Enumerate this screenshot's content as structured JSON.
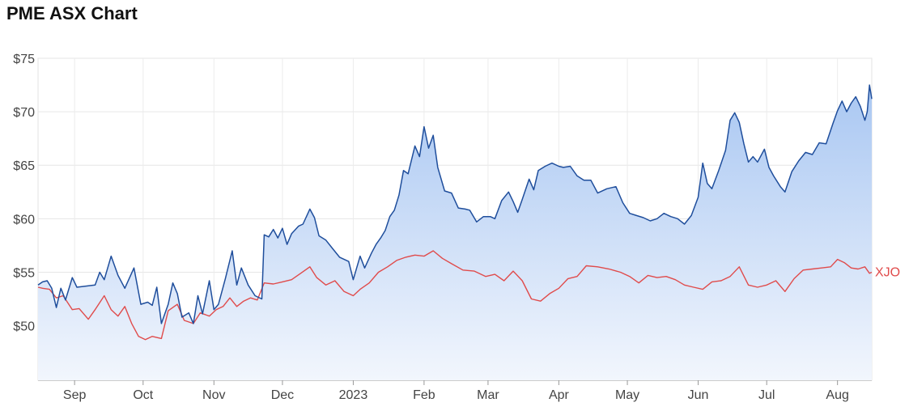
{
  "page_title": "PME ASX Chart",
  "chart_data": {
    "type": "area",
    "title": "PME ASX Chart",
    "xlabel": "",
    "ylabel": "",
    "ylim": [
      44.9,
      75
    ],
    "grid": true,
    "y_ticks": [
      {
        "value": 50,
        "label": "$50"
      },
      {
        "value": 55,
        "label": "$55"
      },
      {
        "value": 60,
        "label": "$60"
      },
      {
        "value": 65,
        "label": "$65"
      },
      {
        "value": 70,
        "label": "$70"
      },
      {
        "value": 75,
        "label": "$75"
      }
    ],
    "x_ticks": [
      {
        "date": "2022-09-01",
        "label": "Sep"
      },
      {
        "date": "2022-10-01",
        "label": "Oct"
      },
      {
        "date": "2022-11-01",
        "label": "Nov"
      },
      {
        "date": "2022-12-01",
        "label": "Dec"
      },
      {
        "date": "2023-01-01",
        "label": "2023"
      },
      {
        "date": "2023-02-01",
        "label": "Feb"
      },
      {
        "date": "2023-03-01",
        "label": "Mar"
      },
      {
        "date": "2023-04-01",
        "label": "Apr"
      },
      {
        "date": "2023-05-01",
        "label": "May"
      },
      {
        "date": "2023-06-01",
        "label": "Jun"
      },
      {
        "date": "2023-07-01",
        "label": "Jul"
      },
      {
        "date": "2023-08-01",
        "label": "Aug"
      }
    ],
    "x_range": [
      "2022-08-16",
      "2023-08-16"
    ],
    "series": [
      {
        "name": "",
        "color": "#1f4e9c",
        "fill_top": "#a9c7f2",
        "fill_bottom": "#f2f6fd",
        "points": [
          [
            "2022-08-16",
            53.8
          ],
          [
            "2022-08-18",
            54.1
          ],
          [
            "2022-08-20",
            54.2
          ],
          [
            "2022-08-22",
            53.5
          ],
          [
            "2022-08-24",
            51.7
          ],
          [
            "2022-08-26",
            53.5
          ],
          [
            "2022-08-28",
            52.4
          ],
          [
            "2022-08-31",
            54.5
          ],
          [
            "2022-09-02",
            53.6
          ],
          [
            "2022-09-06",
            53.7
          ],
          [
            "2022-09-10",
            53.8
          ],
          [
            "2022-09-12",
            55.0
          ],
          [
            "2022-09-14",
            54.3
          ],
          [
            "2022-09-17",
            56.5
          ],
          [
            "2022-09-20",
            54.7
          ],
          [
            "2022-09-23",
            53.5
          ],
          [
            "2022-09-27",
            55.4
          ],
          [
            "2022-09-30",
            52.0
          ],
          [
            "2022-10-03",
            52.2
          ],
          [
            "2022-10-05",
            51.9
          ],
          [
            "2022-10-07",
            53.6
          ],
          [
            "2022-10-09",
            50.2
          ],
          [
            "2022-10-12",
            52.0
          ],
          [
            "2022-10-14",
            54.0
          ],
          [
            "2022-10-16",
            53.0
          ],
          [
            "2022-10-18",
            50.8
          ],
          [
            "2022-10-21",
            51.2
          ],
          [
            "2022-10-23",
            50.2
          ],
          [
            "2022-10-25",
            52.8
          ],
          [
            "2022-10-27",
            51.1
          ],
          [
            "2022-10-30",
            54.2
          ],
          [
            "2022-11-01",
            51.5
          ],
          [
            "2022-11-03",
            52.0
          ],
          [
            "2022-11-06",
            54.4
          ],
          [
            "2022-11-09",
            57.0
          ],
          [
            "2022-11-11",
            53.8
          ],
          [
            "2022-11-13",
            55.4
          ],
          [
            "2022-11-16",
            53.8
          ],
          [
            "2022-11-19",
            52.8
          ],
          [
            "2022-11-22",
            52.5
          ],
          [
            "2022-11-23",
            58.5
          ],
          [
            "2022-11-25",
            58.3
          ],
          [
            "2022-11-27",
            59.0
          ],
          [
            "2022-11-29",
            58.2
          ],
          [
            "2022-12-01",
            59.1
          ],
          [
            "2022-12-03",
            57.6
          ],
          [
            "2022-12-05",
            58.6
          ],
          [
            "2022-12-08",
            59.3
          ],
          [
            "2022-12-10",
            59.5
          ],
          [
            "2022-12-13",
            60.9
          ],
          [
            "2022-12-15",
            60.1
          ],
          [
            "2022-12-17",
            58.4
          ],
          [
            "2022-12-20",
            58.0
          ],
          [
            "2022-12-23",
            57.2
          ],
          [
            "2022-12-26",
            56.4
          ],
          [
            "2022-12-30",
            56.0
          ],
          [
            "2023-01-01",
            54.3
          ],
          [
            "2023-01-04",
            56.5
          ],
          [
            "2023-01-06",
            55.4
          ],
          [
            "2023-01-09",
            56.8
          ],
          [
            "2023-01-11",
            57.6
          ],
          [
            "2023-01-13",
            58.2
          ],
          [
            "2023-01-15",
            58.9
          ],
          [
            "2023-01-17",
            60.2
          ],
          [
            "2023-01-19",
            60.8
          ],
          [
            "2023-01-21",
            62.2
          ],
          [
            "2023-01-23",
            64.5
          ],
          [
            "2023-01-25",
            64.2
          ],
          [
            "2023-01-28",
            66.8
          ],
          [
            "2023-01-30",
            65.8
          ],
          [
            "2023-02-01",
            68.6
          ],
          [
            "2023-02-03",
            66.6
          ],
          [
            "2023-02-05",
            67.8
          ],
          [
            "2023-02-07",
            64.8
          ],
          [
            "2023-02-10",
            62.6
          ],
          [
            "2023-02-13",
            62.4
          ],
          [
            "2023-02-16",
            61.0
          ],
          [
            "2023-02-19",
            60.9
          ],
          [
            "2023-02-21",
            60.8
          ],
          [
            "2023-02-24",
            59.7
          ],
          [
            "2023-02-27",
            60.2
          ],
          [
            "2023-03-02",
            60.2
          ],
          [
            "2023-03-04",
            60.0
          ],
          [
            "2023-03-07",
            61.7
          ],
          [
            "2023-03-10",
            62.5
          ],
          [
            "2023-03-12",
            61.6
          ],
          [
            "2023-03-14",
            60.6
          ],
          [
            "2023-03-16",
            61.8
          ],
          [
            "2023-03-19",
            63.7
          ],
          [
            "2023-03-21",
            62.7
          ],
          [
            "2023-03-23",
            64.5
          ],
          [
            "2023-03-26",
            64.9
          ],
          [
            "2023-03-29",
            65.2
          ],
          [
            "2023-04-01",
            64.9
          ],
          [
            "2023-04-03",
            64.8
          ],
          [
            "2023-04-06",
            64.9
          ],
          [
            "2023-04-09",
            64.0
          ],
          [
            "2023-04-12",
            63.6
          ],
          [
            "2023-04-15",
            63.6
          ],
          [
            "2023-04-18",
            62.4
          ],
          [
            "2023-04-22",
            62.8
          ],
          [
            "2023-04-26",
            63.0
          ],
          [
            "2023-04-29",
            61.5
          ],
          [
            "2023-05-02",
            60.5
          ],
          [
            "2023-05-05",
            60.3
          ],
          [
            "2023-05-08",
            60.1
          ],
          [
            "2023-05-11",
            59.8
          ],
          [
            "2023-05-14",
            60.0
          ],
          [
            "2023-05-17",
            60.5
          ],
          [
            "2023-05-20",
            60.2
          ],
          [
            "2023-05-23",
            60.0
          ],
          [
            "2023-05-26",
            59.5
          ],
          [
            "2023-05-29",
            60.3
          ],
          [
            "2023-06-01",
            62.0
          ],
          [
            "2023-06-03",
            65.2
          ],
          [
            "2023-06-05",
            63.3
          ],
          [
            "2023-06-07",
            62.8
          ],
          [
            "2023-06-10",
            64.5
          ],
          [
            "2023-06-13",
            66.4
          ],
          [
            "2023-06-15",
            69.2
          ],
          [
            "2023-06-17",
            69.9
          ],
          [
            "2023-06-19",
            69.0
          ],
          [
            "2023-06-21",
            67.0
          ],
          [
            "2023-06-23",
            65.3
          ],
          [
            "2023-06-25",
            65.8
          ],
          [
            "2023-06-27",
            65.3
          ],
          [
            "2023-06-30",
            66.5
          ],
          [
            "2023-07-02",
            64.8
          ],
          [
            "2023-07-04",
            64.0
          ],
          [
            "2023-07-07",
            63.0
          ],
          [
            "2023-07-09",
            62.5
          ],
          [
            "2023-07-12",
            64.4
          ],
          [
            "2023-07-15",
            65.4
          ],
          [
            "2023-07-18",
            66.2
          ],
          [
            "2023-07-21",
            66.0
          ],
          [
            "2023-07-24",
            67.1
          ],
          [
            "2023-07-27",
            67.0
          ],
          [
            "2023-07-30",
            68.9
          ],
          [
            "2023-08-01",
            70.1
          ],
          [
            "2023-08-03",
            71.0
          ],
          [
            "2023-08-05",
            70.0
          ],
          [
            "2023-08-07",
            70.8
          ],
          [
            "2023-08-09",
            71.4
          ],
          [
            "2023-08-11",
            70.5
          ],
          [
            "2023-08-13",
            69.2
          ],
          [
            "2023-08-14",
            70.0
          ],
          [
            "2023-08-15",
            72.5
          ],
          [
            "2023-08-16",
            71.2
          ]
        ]
      },
      {
        "name": "XJO",
        "color": "#e04b4b",
        "points": [
          [
            "2022-08-16",
            53.6
          ],
          [
            "2022-08-18",
            53.5
          ],
          [
            "2022-08-21",
            53.4
          ],
          [
            "2022-08-24",
            52.6
          ],
          [
            "2022-08-27",
            52.8
          ],
          [
            "2022-08-31",
            51.5
          ],
          [
            "2022-09-03",
            51.6
          ],
          [
            "2022-09-07",
            50.6
          ],
          [
            "2022-09-10",
            51.5
          ],
          [
            "2022-09-14",
            52.8
          ],
          [
            "2022-09-17",
            51.5
          ],
          [
            "2022-09-20",
            50.9
          ],
          [
            "2022-09-23",
            51.8
          ],
          [
            "2022-09-26",
            50.2
          ],
          [
            "2022-09-29",
            49.0
          ],
          [
            "2022-10-02",
            48.7
          ],
          [
            "2022-10-05",
            49.0
          ],
          [
            "2022-10-09",
            48.8
          ],
          [
            "2022-10-12",
            51.4
          ],
          [
            "2022-10-16",
            52.0
          ],
          [
            "2022-10-19",
            50.5
          ],
          [
            "2022-10-23",
            50.2
          ],
          [
            "2022-10-26",
            51.2
          ],
          [
            "2022-10-30",
            50.9
          ],
          [
            "2022-11-02",
            51.5
          ],
          [
            "2022-11-05",
            51.8
          ],
          [
            "2022-11-08",
            52.6
          ],
          [
            "2022-11-11",
            51.8
          ],
          [
            "2022-11-14",
            52.3
          ],
          [
            "2022-11-17",
            52.6
          ],
          [
            "2022-11-20",
            52.4
          ],
          [
            "2022-11-23",
            54.0
          ],
          [
            "2022-11-27",
            53.9
          ],
          [
            "2022-12-01",
            54.1
          ],
          [
            "2022-12-05",
            54.3
          ],
          [
            "2022-12-09",
            54.9
          ],
          [
            "2022-12-13",
            55.5
          ],
          [
            "2022-12-16",
            54.5
          ],
          [
            "2022-12-20",
            53.8
          ],
          [
            "2022-12-24",
            54.2
          ],
          [
            "2022-12-28",
            53.2
          ],
          [
            "2023-01-01",
            52.8
          ],
          [
            "2023-01-04",
            53.4
          ],
          [
            "2023-01-08",
            54.0
          ],
          [
            "2023-01-12",
            55.0
          ],
          [
            "2023-01-16",
            55.5
          ],
          [
            "2023-01-20",
            56.1
          ],
          [
            "2023-01-24",
            56.4
          ],
          [
            "2023-01-28",
            56.6
          ],
          [
            "2023-02-01",
            56.5
          ],
          [
            "2023-02-05",
            57.0
          ],
          [
            "2023-02-09",
            56.3
          ],
          [
            "2023-02-13",
            55.8
          ],
          [
            "2023-02-18",
            55.2
          ],
          [
            "2023-02-23",
            55.1
          ],
          [
            "2023-02-28",
            54.6
          ],
          [
            "2023-03-04",
            54.8
          ],
          [
            "2023-03-08",
            54.2
          ],
          [
            "2023-03-12",
            55.1
          ],
          [
            "2023-03-16",
            54.2
          ],
          [
            "2023-03-20",
            52.5
          ],
          [
            "2023-03-24",
            52.3
          ],
          [
            "2023-03-28",
            53.0
          ],
          [
            "2023-04-01",
            53.5
          ],
          [
            "2023-04-05",
            54.4
          ],
          [
            "2023-04-09",
            54.6
          ],
          [
            "2023-04-13",
            55.6
          ],
          [
            "2023-04-18",
            55.5
          ],
          [
            "2023-04-23",
            55.3
          ],
          [
            "2023-04-28",
            55.0
          ],
          [
            "2023-05-02",
            54.6
          ],
          [
            "2023-05-06",
            54.0
          ],
          [
            "2023-05-10",
            54.7
          ],
          [
            "2023-05-14",
            54.5
          ],
          [
            "2023-05-18",
            54.6
          ],
          [
            "2023-05-22",
            54.3
          ],
          [
            "2023-05-26",
            53.8
          ],
          [
            "2023-05-30",
            53.6
          ],
          [
            "2023-06-03",
            53.4
          ],
          [
            "2023-06-07",
            54.1
          ],
          [
            "2023-06-11",
            54.2
          ],
          [
            "2023-06-15",
            54.6
          ],
          [
            "2023-06-19",
            55.5
          ],
          [
            "2023-06-23",
            53.8
          ],
          [
            "2023-06-27",
            53.6
          ],
          [
            "2023-07-01",
            53.8
          ],
          [
            "2023-07-05",
            54.2
          ],
          [
            "2023-07-09",
            53.2
          ],
          [
            "2023-07-13",
            54.4
          ],
          [
            "2023-07-17",
            55.2
          ],
          [
            "2023-07-21",
            55.3
          ],
          [
            "2023-07-25",
            55.4
          ],
          [
            "2023-07-29",
            55.5
          ],
          [
            "2023-08-01",
            56.2
          ],
          [
            "2023-08-04",
            55.9
          ],
          [
            "2023-08-07",
            55.4
          ],
          [
            "2023-08-10",
            55.3
          ],
          [
            "2023-08-13",
            55.5
          ],
          [
            "2023-08-15",
            54.9
          ],
          [
            "2023-08-16",
            55.0
          ]
        ]
      }
    ]
  }
}
